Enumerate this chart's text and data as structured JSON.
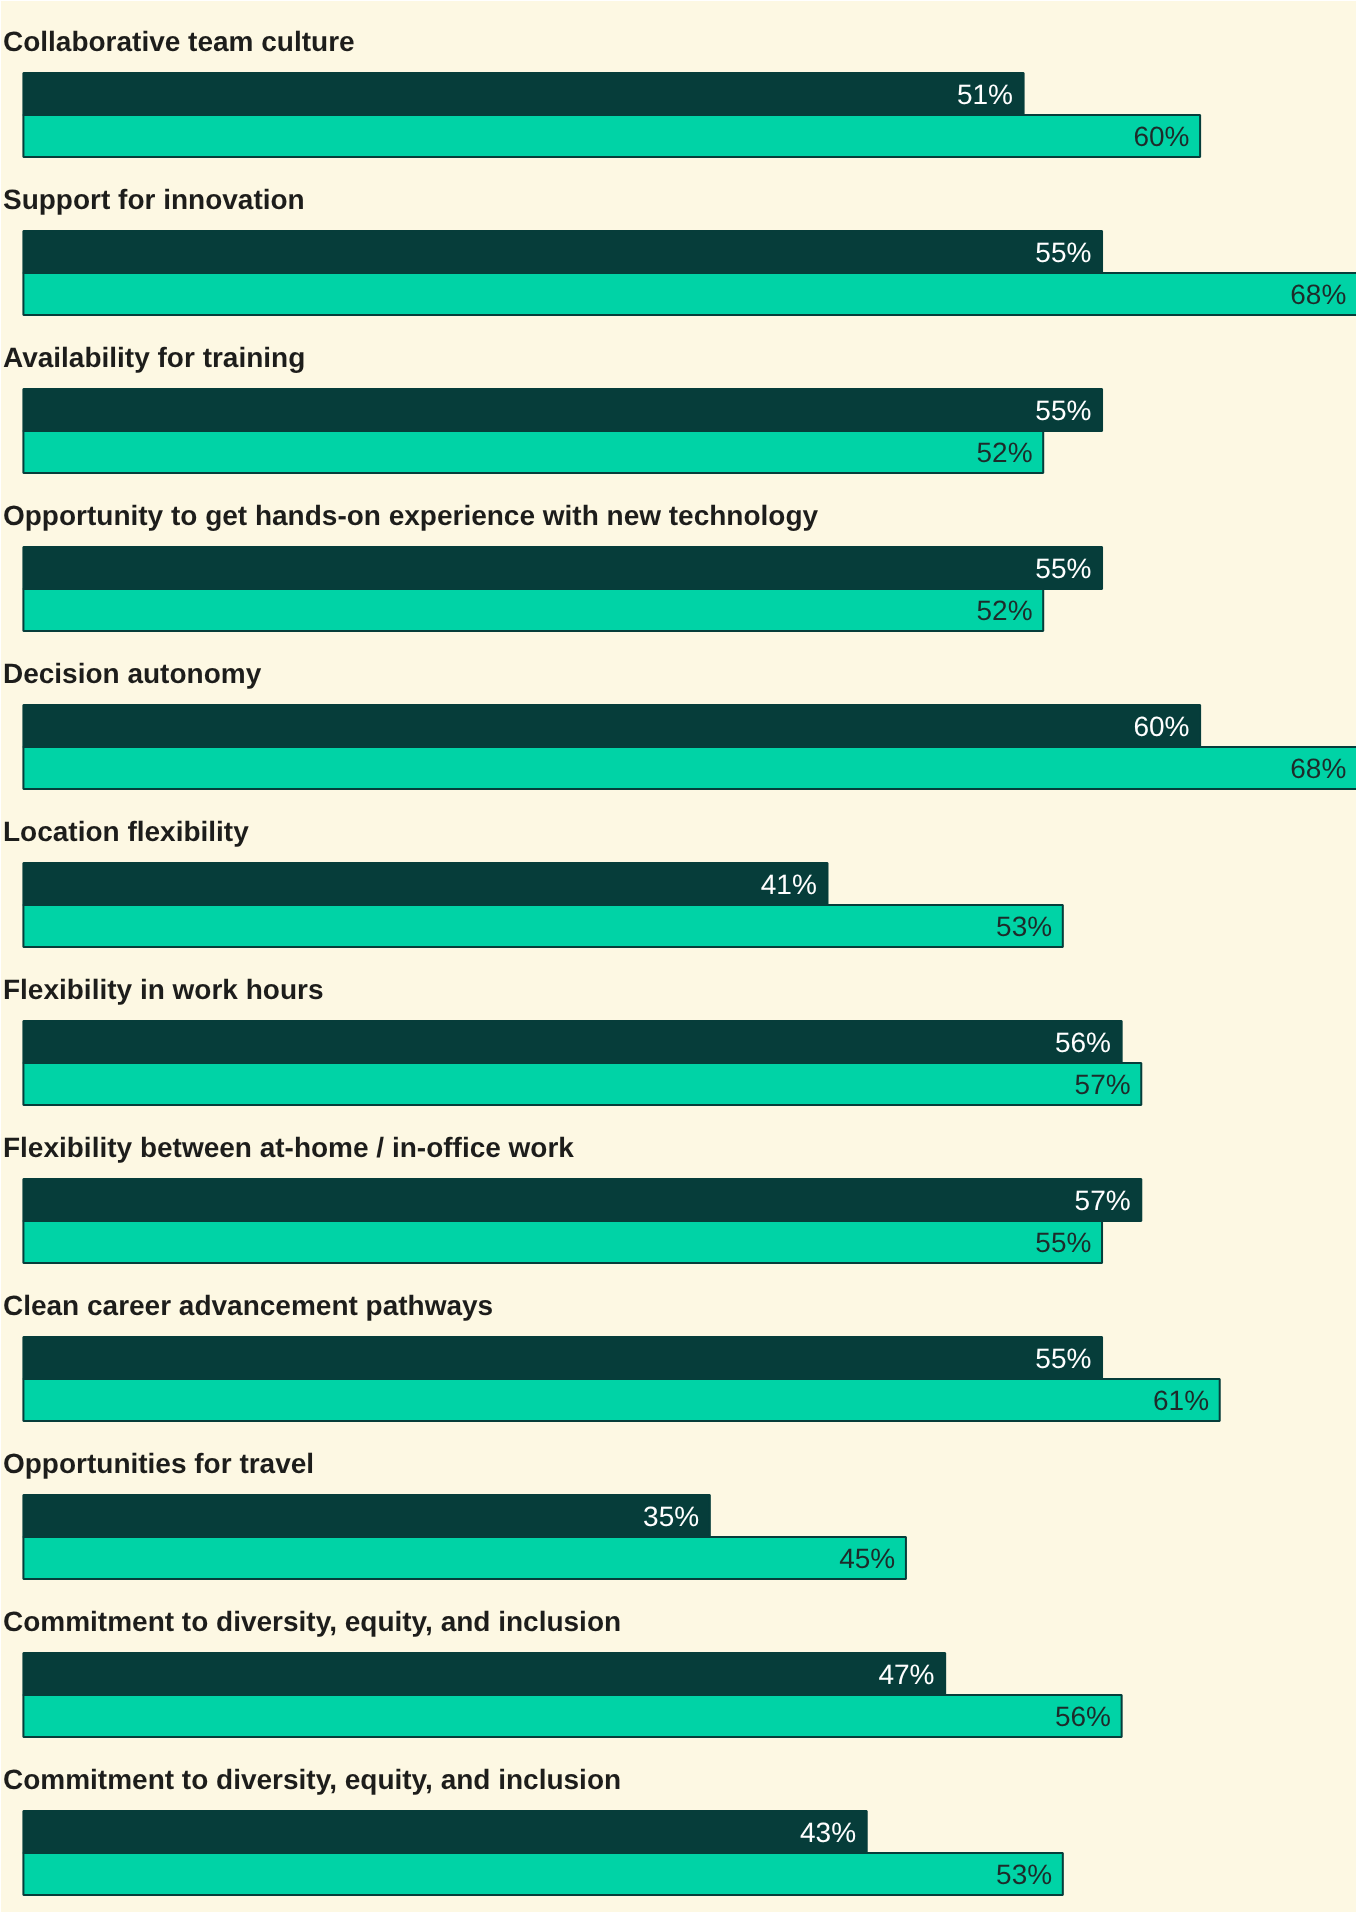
{
  "chart_data": {
    "type": "bar",
    "orientation": "horizontal",
    "categories": [
      "Collaborative team culture",
      "Support for innovation",
      "Availability for training",
      "Opportunity to get hands-on experience with new technology",
      "Decision autonomy",
      "Location flexibility",
      "Flexibility in work hours",
      "Flexibility between at-home / in-office work",
      "Clean career advancement pathways",
      "Opportunities for travel",
      "Commitment to diversity, equity, and inclusion",
      "Commitment to diversity, equity, and inclusion"
    ],
    "series": [
      {
        "color": "#063d3a",
        "values": [
          51,
          55,
          55,
          55,
          60,
          41,
          56,
          57,
          55,
          35,
          47,
          43
        ],
        "value_labels": [
          "51%",
          "55%",
          "55%",
          "55%",
          "60%",
          "41%",
          "56%",
          "57%",
          "55%",
          "35%",
          "47%",
          "43%"
        ]
      },
      {
        "color": "#00d3a6",
        "values": [
          60,
          68,
          52,
          52,
          68,
          53,
          57,
          55,
          61,
          45,
          56,
          53
        ],
        "value_labels": [
          "60%",
          "68%",
          "52%",
          "52%",
          "68%",
          "53%",
          "57%",
          "55%",
          "61%",
          "45%",
          "56%",
          "53%"
        ]
      }
    ]
  }
}
